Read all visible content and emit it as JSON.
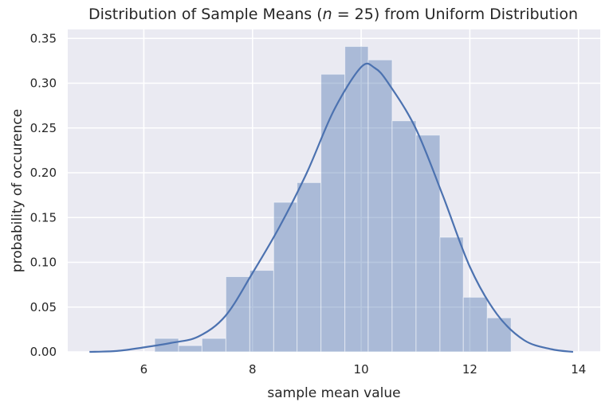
{
  "chart_data": {
    "type": "bar",
    "title": "Distribution of Sample Means (n = 25) from Uniform Distribution",
    "title_parts": [
      "Distribution of Sample Means (",
      "n",
      " = 25) from Uniform Distribution"
    ],
    "xlabel": "sample mean value",
    "ylabel": "probability of occurence",
    "xlim": [
      4.6,
      14.4
    ],
    "ylim": [
      0,
      0.36
    ],
    "x_ticks": [
      6,
      8,
      10,
      12,
      14
    ],
    "y_ticks": [
      0.0,
      0.05,
      0.1,
      0.15,
      0.2,
      0.25,
      0.3,
      0.35
    ],
    "x_tick_labels": [
      "6",
      "8",
      "10",
      "12",
      "14"
    ],
    "y_tick_labels": [
      "0.00",
      "0.05",
      "0.10",
      "0.15",
      "0.20",
      "0.25",
      "0.30",
      "0.35"
    ],
    "grid": true,
    "legend": "none",
    "histogram": {
      "bin_edges": [
        6.2,
        6.64,
        7.07,
        7.51,
        7.95,
        8.39,
        8.82,
        9.26,
        9.7,
        10.13,
        10.57,
        11.01,
        11.45,
        11.88,
        12.32,
        12.76
      ],
      "heights": [
        0.015,
        0.007,
        0.015,
        0.084,
        0.091,
        0.167,
        0.189,
        0.31,
        0.341,
        0.326,
        0.258,
        0.242,
        0.128,
        0.061,
        0.038
      ]
    },
    "kde": {
      "x": [
        5.0,
        5.5,
        6.0,
        6.5,
        7.0,
        7.5,
        8.0,
        8.5,
        9.0,
        9.5,
        10.0,
        10.25,
        10.5,
        11.0,
        11.5,
        12.0,
        12.5,
        13.0,
        13.5,
        13.9
      ],
      "y": [
        0.0,
        0.001,
        0.005,
        0.01,
        0.017,
        0.04,
        0.088,
        0.14,
        0.2,
        0.27,
        0.318,
        0.317,
        0.3,
        0.25,
        0.175,
        0.095,
        0.042,
        0.013,
        0.003,
        0.0
      ]
    },
    "colors": {
      "background": "#eaeaf2",
      "grid": "#ffffff",
      "bar_fill": "#4c72b0",
      "bar_opacity": 0.4,
      "line": "#4c72b0",
      "text": "#262626"
    }
  }
}
